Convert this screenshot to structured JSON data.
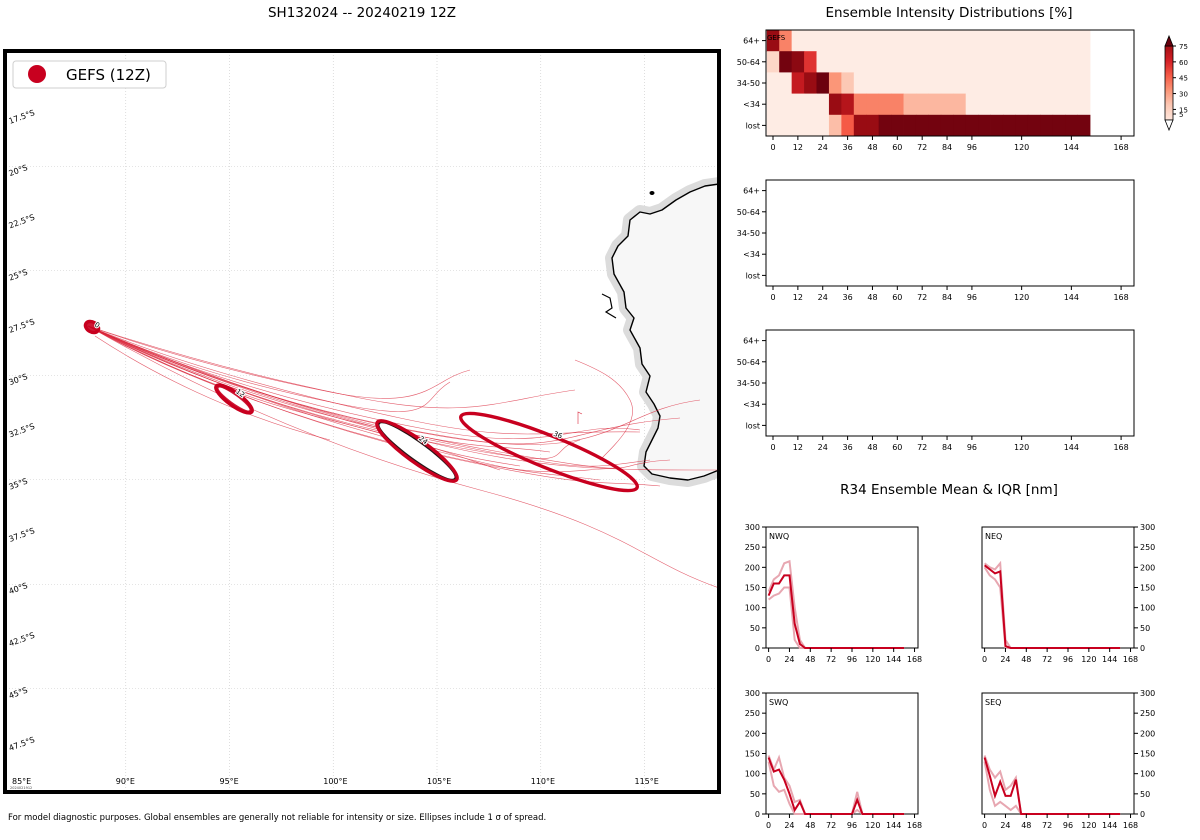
{
  "map": {
    "title": "SH132024 -- 20240219 12Z",
    "legend_label": "GEFS (12Z)",
    "legend_color": "#c8001f",
    "lat_labels": [
      "17.5°S",
      "20°S",
      "22.5°S",
      "25°S",
      "27.5°S",
      "30°S",
      "32.5°S",
      "35°S",
      "37.5°S",
      "40°S",
      "42.5°S",
      "45°S",
      "47.5°S"
    ],
    "lon_labels": [
      "85°E",
      "90°E",
      "95°E",
      "100°E",
      "105°E",
      "110°E",
      "115°E"
    ],
    "ellipse_labels": [
      "0",
      "12",
      "24",
      "36"
    ],
    "stamp": "2024021912",
    "footer": "For model diagnostic purposes. Global ensembles are generally not reliable for intensity or size. Ellipses include 1 σ of spread."
  },
  "chart_data": [
    {
      "type": "heatmap",
      "title": "Ensemble Intensity Distributions [%]",
      "panel_label": "GEFS",
      "categories_y": [
        "64+",
        "50-64",
        "34-50",
        "<34",
        "lost"
      ],
      "x_ticks": [
        0,
        12,
        24,
        36,
        48,
        60,
        72,
        84,
        96,
        120,
        144,
        168
      ],
      "colorbar_ticks": [
        5,
        15,
        30,
        45,
        60,
        75
      ],
      "cells": {
        "64+": [
          80,
          35,
          3,
          3,
          3,
          3,
          3,
          3,
          3,
          3,
          3,
          3,
          3,
          3,
          3,
          3,
          3,
          3,
          3,
          3,
          3,
          3,
          3,
          3,
          3,
          3,
          3
        ],
        "50-64": [
          10,
          95,
          85,
          55,
          3,
          3,
          3,
          3,
          3,
          3,
          3,
          3,
          3,
          3,
          3,
          3,
          3,
          3,
          3,
          3,
          3,
          3,
          3,
          3,
          3,
          3,
          3
        ],
        "34-50": [
          3,
          3,
          65,
          80,
          98,
          30,
          15,
          3,
          3,
          3,
          3,
          3,
          3,
          3,
          3,
          3,
          3,
          3,
          3,
          3,
          3,
          3,
          3,
          3,
          3,
          3,
          3
        ],
        "<34": [
          3,
          3,
          3,
          3,
          3,
          80,
          70,
          35,
          35,
          35,
          35,
          20,
          20,
          20,
          20,
          20,
          3,
          3,
          3,
          3,
          3,
          3,
          3,
          3,
          3,
          3,
          3
        ],
        "lost": [
          3,
          3,
          3,
          3,
          3,
          18,
          45,
          80,
          80,
          95,
          95,
          95,
          95,
          95,
          95,
          95,
          95,
          95,
          95,
          95,
          95,
          95,
          95,
          95,
          95,
          95,
          3
        ]
      }
    },
    {
      "type": "heatmap",
      "title": "",
      "categories_y": [
        "64+",
        "50-64",
        "34-50",
        "<34",
        "lost"
      ],
      "x_ticks": [
        0,
        12,
        24,
        36,
        48,
        60,
        72,
        84,
        96,
        120,
        144,
        168
      ],
      "cells": {}
    },
    {
      "type": "heatmap",
      "title": "",
      "categories_y": [
        "64+",
        "50-64",
        "34-50",
        "<34",
        "lost"
      ],
      "x_ticks": [
        0,
        12,
        24,
        36,
        48,
        60,
        72,
        84,
        96,
        120,
        144,
        168
      ],
      "cells": {}
    },
    {
      "type": "line",
      "group_title": "R34 Ensemble Mean & IQR [nm]",
      "panels": [
        {
          "name": "NWQ",
          "axis_side": "left",
          "x": [
            0,
            6,
            12,
            18,
            24,
            30,
            36,
            42,
            48,
            60,
            72,
            84,
            96,
            108,
            120,
            132,
            144,
            156
          ],
          "mean": [
            130,
            160,
            160,
            180,
            180,
            60,
            10,
            0,
            0,
            0,
            0,
            0,
            0,
            0,
            0,
            0,
            0,
            0
          ],
          "q25": [
            120,
            130,
            135,
            150,
            150,
            20,
            0,
            0,
            0,
            0,
            0,
            0,
            0,
            0,
            0,
            0,
            0,
            0
          ],
          "q75": [
            140,
            170,
            180,
            210,
            215,
            100,
            20,
            0,
            0,
            0,
            0,
            0,
            0,
            0,
            0,
            0,
            0,
            0
          ]
        },
        {
          "name": "NEQ",
          "axis_side": "right",
          "x": [
            0,
            6,
            12,
            18,
            24,
            30,
            36,
            42,
            48,
            60,
            72,
            84,
            96,
            108,
            120,
            132,
            144,
            156
          ],
          "mean": [
            205,
            195,
            185,
            190,
            5,
            0,
            0,
            0,
            0,
            0,
            0,
            0,
            0,
            0,
            0,
            0,
            0,
            0
          ],
          "q25": [
            200,
            180,
            170,
            150,
            0,
            0,
            0,
            0,
            0,
            0,
            0,
            0,
            0,
            0,
            0,
            0,
            0,
            0
          ],
          "q75": [
            210,
            200,
            195,
            210,
            20,
            0,
            0,
            0,
            0,
            0,
            0,
            0,
            0,
            0,
            0,
            0,
            0,
            0
          ]
        },
        {
          "name": "SWQ",
          "axis_side": "left",
          "x": [
            0,
            6,
            12,
            18,
            24,
            30,
            36,
            42,
            48,
            60,
            72,
            84,
            96,
            102,
            108,
            120,
            132,
            144,
            156
          ],
          "mean": [
            140,
            105,
            110,
            85,
            50,
            10,
            30,
            0,
            0,
            0,
            0,
            0,
            0,
            35,
            0,
            0,
            0,
            0,
            0
          ],
          "q25": [
            130,
            70,
            55,
            60,
            25,
            0,
            0,
            0,
            0,
            0,
            0,
            0,
            0,
            10,
            0,
            0,
            0,
            0,
            0
          ],
          "q75": [
            145,
            110,
            140,
            90,
            70,
            30,
            35,
            0,
            0,
            0,
            0,
            0,
            0,
            55,
            0,
            0,
            0,
            0,
            0
          ]
        },
        {
          "name": "SEQ",
          "axis_side": "right",
          "x": [
            0,
            6,
            12,
            18,
            24,
            30,
            36,
            42,
            48,
            60,
            72,
            84,
            96,
            108,
            120,
            132,
            144,
            156
          ],
          "mean": [
            140,
            95,
            45,
            80,
            45,
            45,
            85,
            0,
            0,
            0,
            0,
            0,
            0,
            0,
            0,
            0,
            0,
            0
          ],
          "q25": [
            130,
            60,
            20,
            30,
            20,
            10,
            20,
            0,
            0,
            0,
            0,
            0,
            0,
            0,
            0,
            0,
            0,
            0
          ],
          "q75": [
            145,
            110,
            90,
            105,
            60,
            70,
            90,
            0,
            0,
            0,
            0,
            0,
            0,
            0,
            0,
            0,
            0,
            0
          ]
        }
      ],
      "x_ticks": [
        0,
        24,
        48,
        72,
        96,
        120,
        144,
        168
      ],
      "y_ticks": [
        0,
        50,
        100,
        150,
        200,
        250,
        300
      ],
      "ylim": [
        0,
        300
      ],
      "xlim": [
        -3,
        172
      ]
    }
  ]
}
